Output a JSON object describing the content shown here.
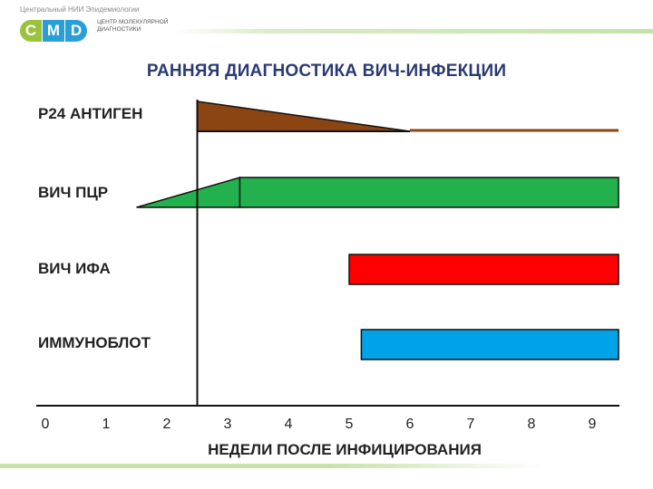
{
  "header": {
    "logo_caption": "Центральный НИИ Эпидемиологии",
    "logo_letters": [
      "C",
      "M",
      "D"
    ],
    "logo_subtitle": "ЦЕНТР МОЛЕКУЛЯРНОЙ ДИАГНОСТИКИ"
  },
  "colors": {
    "title": "#2b3a73",
    "p24": "#8b4513",
    "pcr": "#22b14c",
    "ifa": "#ff0000",
    "blot": "#00a2e8"
  },
  "chart_data": {
    "type": "gantt",
    "title": "РАННЯЯ ДИАГНОСТИКА ВИЧ-ИНФЕКЦИИ",
    "xlabel": "НЕДЕЛИ ПОСЛЕ ИНФИЦИРОВАНИЯ",
    "xlim": [
      0,
      9.5
    ],
    "x_ticks": [
      "0",
      "1",
      "2",
      "3",
      "4",
      "5",
      "6",
      "7",
      "8",
      "9"
    ],
    "infection_marker_week": 2.5,
    "rows": [
      {
        "label": "P24 АНТИГЕН",
        "color": "#8b4513",
        "shape": "declining-wedge",
        "start": 2.5,
        "peak_end": 6,
        "end": 9.5
      },
      {
        "label": "ВИЧ ПЦР",
        "color": "#22b14c",
        "shape": "rising-wedge-then-bar",
        "start": 1.5,
        "ramp_end": 3.2,
        "end": 9.5
      },
      {
        "label": "ВИЧ ИФА",
        "color": "#ff0000",
        "shape": "bar",
        "start": 5,
        "end": 9.5
      },
      {
        "label": "ИММУНОБЛОТ",
        "color": "#00a2e8",
        "shape": "bar",
        "start": 5.2,
        "end": 9.5
      }
    ]
  }
}
